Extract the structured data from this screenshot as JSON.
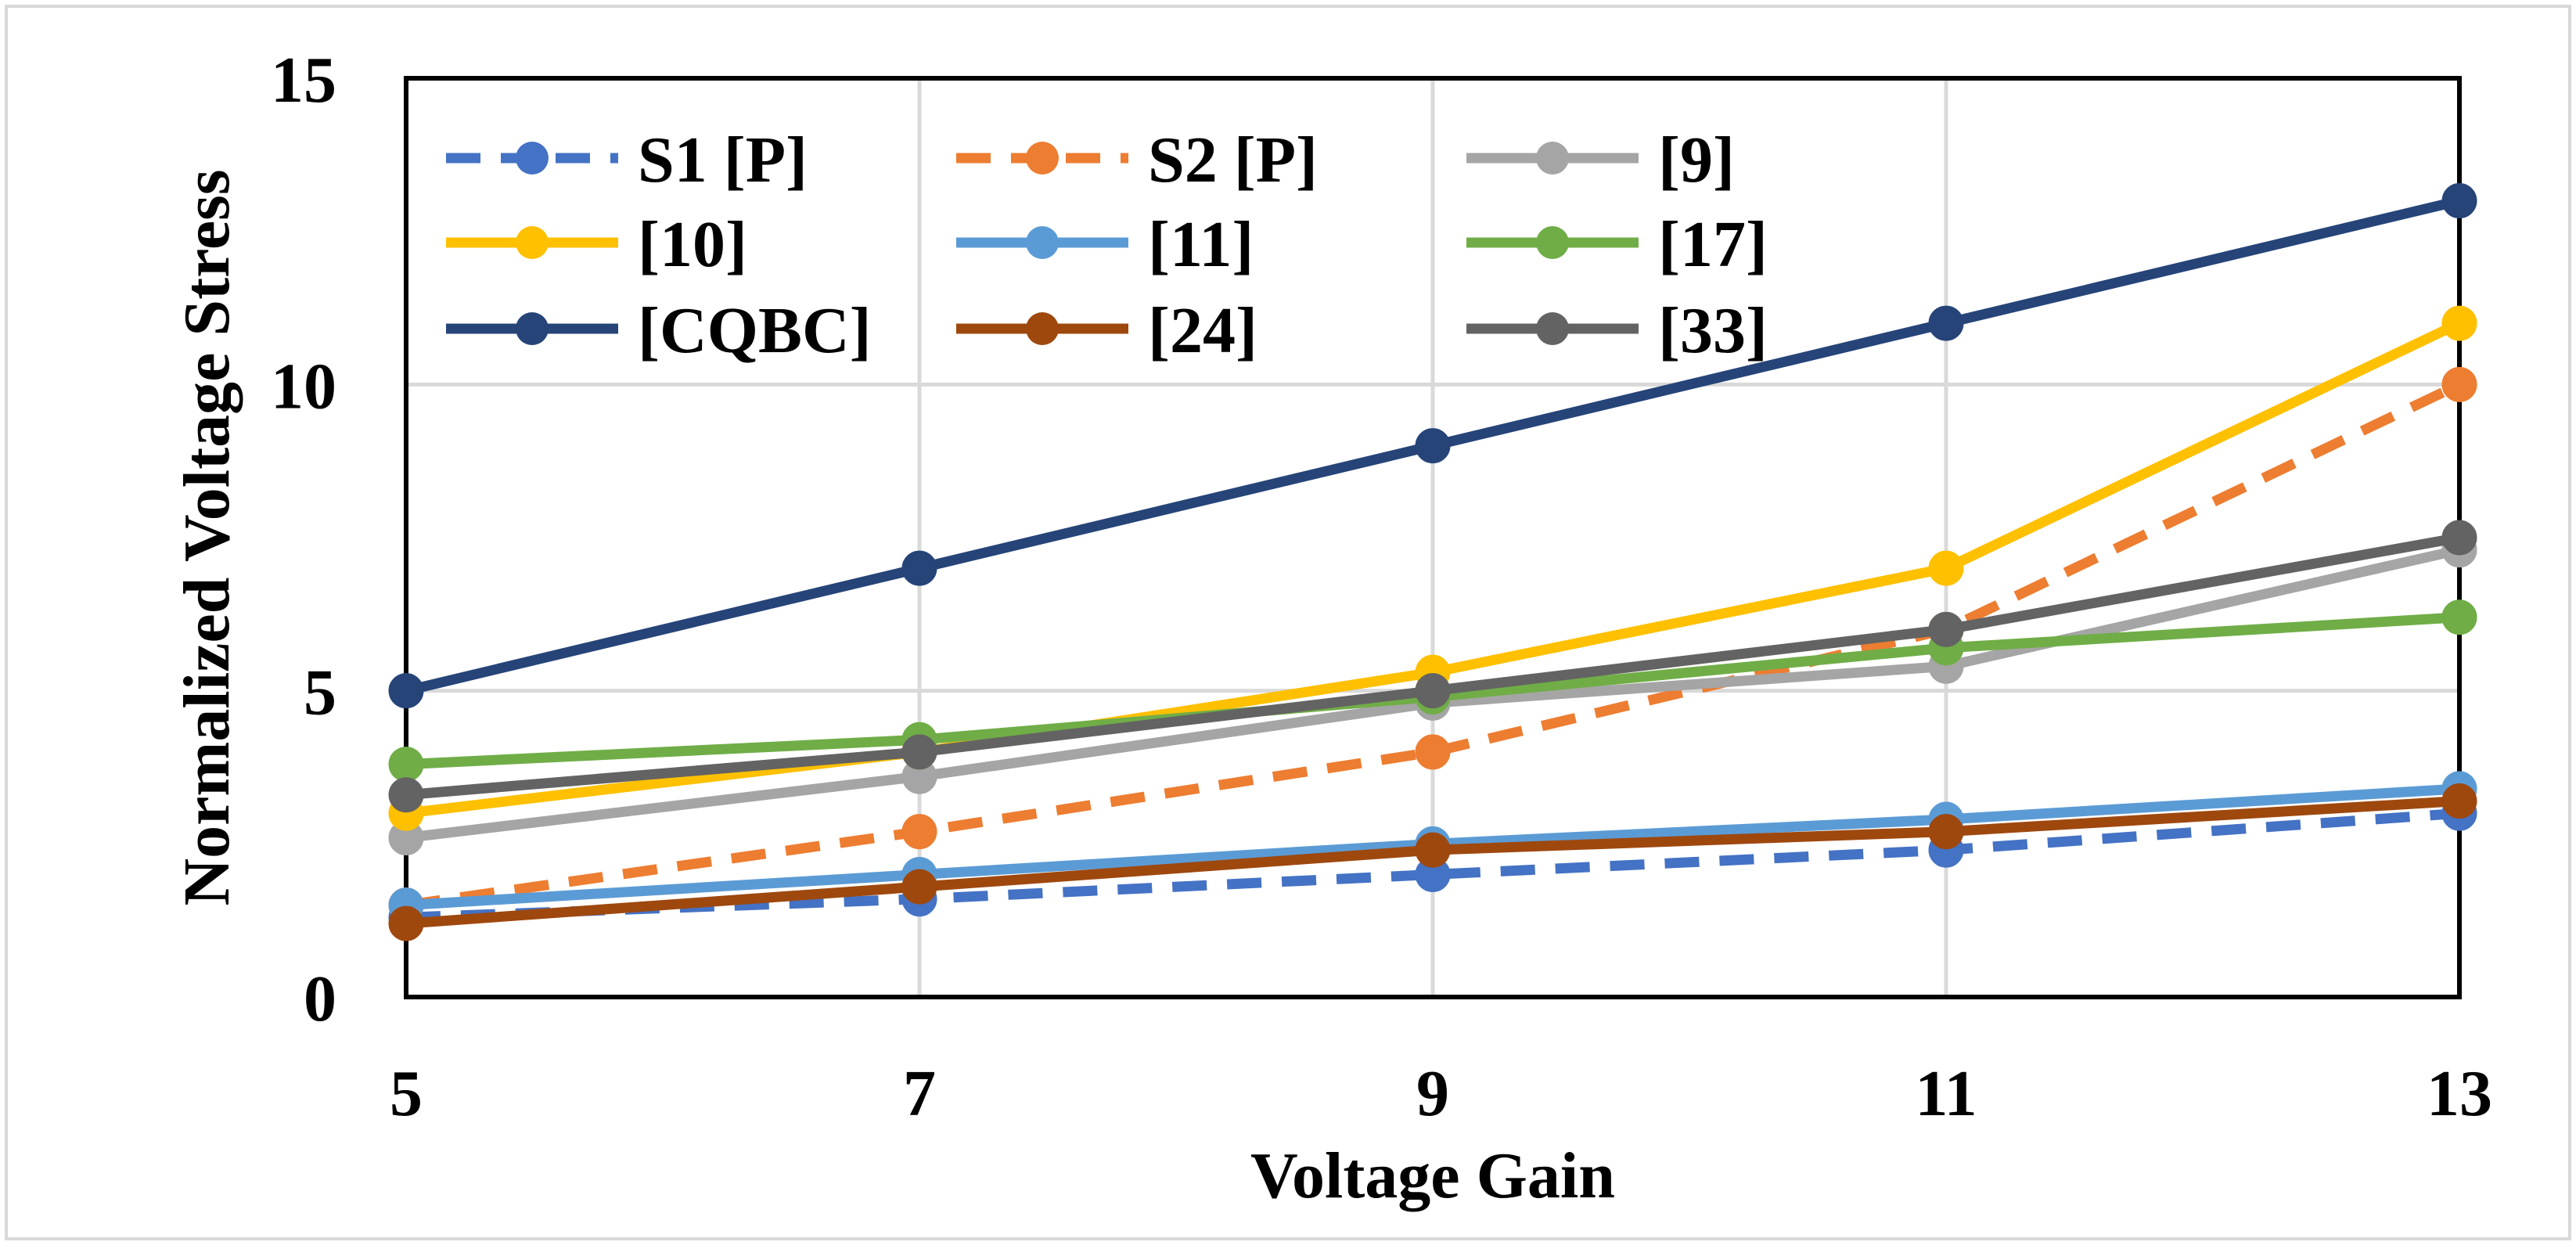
{
  "chart_data": {
    "type": "line",
    "title": "",
    "xlabel": "Voltage Gain",
    "ylabel": "Normalized Voltage Stress",
    "x": [
      5,
      7,
      9,
      11,
      13
    ],
    "xlim": [
      5,
      13
    ],
    "ylim": [
      0,
      15
    ],
    "x_ticks": [
      "5",
      "7",
      "9",
      "11",
      "13"
    ],
    "y_ticks": [
      "0",
      "5",
      "10",
      "15"
    ],
    "grid": true,
    "legend_position": "top-left",
    "series": [
      {
        "name": "S1 [P]",
        "color": "#4472C4",
        "dashed": true,
        "values": [
          1.3,
          1.6,
          2.0,
          2.4,
          3.0
        ]
      },
      {
        "name": "S2 [P]",
        "color": "#ED7D31",
        "dashed": true,
        "values": [
          1.5,
          2.7,
          4.0,
          6.0,
          10.0
        ]
      },
      {
        "name": "[9]",
        "color": "#A5A5A5",
        "dashed": false,
        "values": [
          2.6,
          3.6,
          4.8,
          5.4,
          7.3
        ]
      },
      {
        "name": "[10]",
        "color": "#FFC000",
        "dashed": false,
        "values": [
          3.0,
          4.0,
          5.3,
          7.0,
          11.0
        ]
      },
      {
        "name": "[11]",
        "color": "#5B9BD5",
        "dashed": false,
        "values": [
          1.5,
          2.0,
          2.5,
          2.9,
          3.4
        ]
      },
      {
        "name": "[17]",
        "color": "#70AD47",
        "dashed": false,
        "values": [
          3.8,
          4.2,
          4.9,
          5.7,
          6.2
        ]
      },
      {
        "name": "[CQBC]",
        "color": "#264478",
        "dashed": false,
        "values": [
          5.0,
          7.0,
          9.0,
          11.0,
          13.0
        ]
      },
      {
        "name": "[24]",
        "color": "#9E480E",
        "dashed": false,
        "values": [
          1.2,
          1.8,
          2.4,
          2.7,
          3.2
        ]
      },
      {
        "name": "[33]",
        "color": "#636363",
        "dashed": false,
        "values": [
          3.3,
          4.0,
          5.0,
          6.0,
          7.5
        ]
      }
    ]
  }
}
